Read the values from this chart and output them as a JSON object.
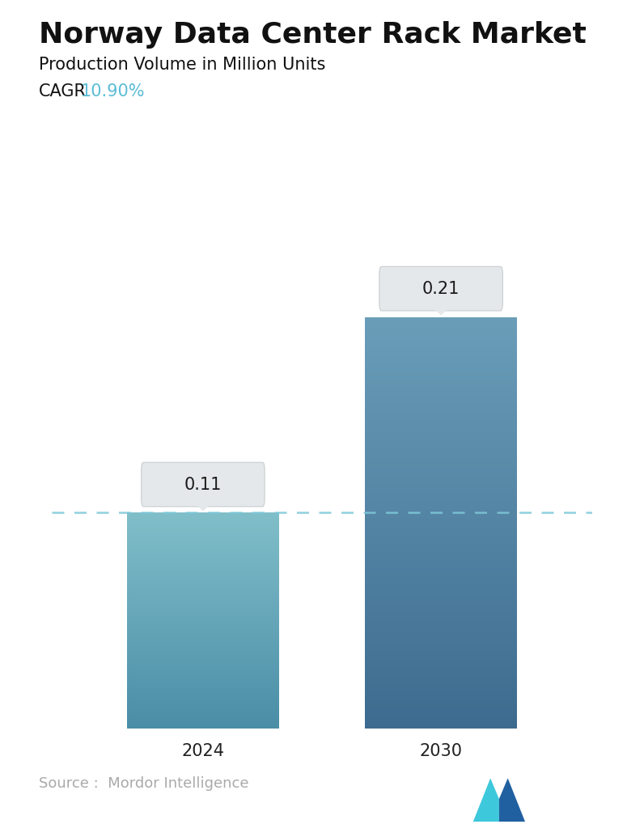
{
  "title": "Norway Data Center Rack Market",
  "subtitle": "Production Volume in Million Units",
  "cagr_label": "CAGR  ",
  "cagr_value": "10.90%",
  "cagr_color": "#5BBCD6",
  "categories": [
    "2024",
    "2030"
  ],
  "values": [
    0.11,
    0.21
  ],
  "bar_top_colors": [
    "#80BEC9",
    "#6A9DB8"
  ],
  "bar_bottom_colors": [
    "#4A8DA6",
    "#3D6B8F"
  ],
  "dashed_line_y": 0.11,
  "dashed_line_color": "#7EC8D8",
  "background_color": "#FFFFFF",
  "source_text": "Source :  Mordor Intelligence",
  "source_color": "#AAAAAA",
  "ylim": [
    0,
    0.265
  ],
  "title_fontsize": 26,
  "subtitle_fontsize": 15,
  "cagr_fontsize": 15,
  "tick_fontsize": 15,
  "annotation_fontsize": 15,
  "source_fontsize": 13,
  "callout_facecolor": "#E4E8EA",
  "callout_edgecolor": "#C8CDD0"
}
